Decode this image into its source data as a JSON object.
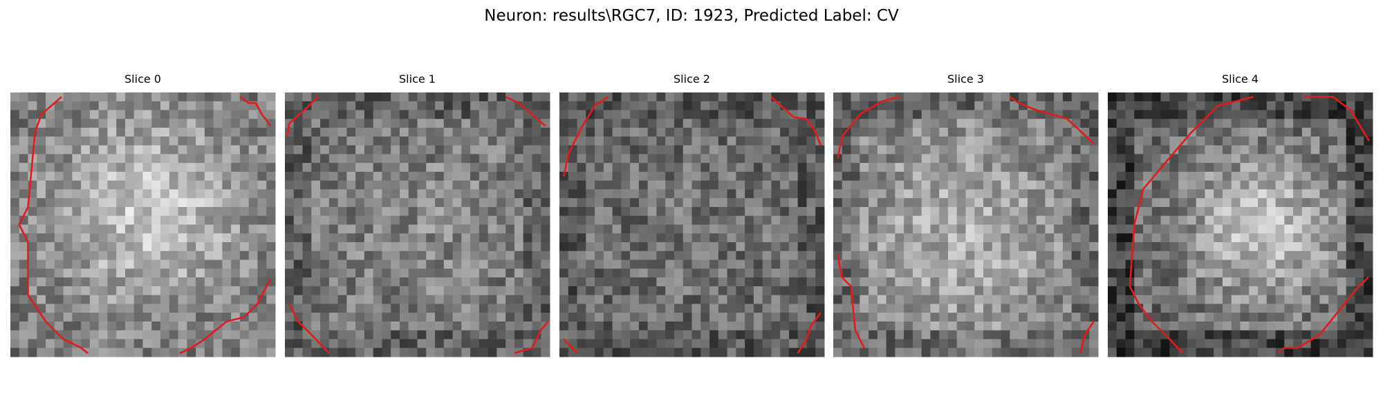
{
  "title": "Neuron: results\\RGC7, ID: 1923, Predicted Label: CV",
  "slices": [
    "Slice 0",
    "Slice 1",
    "Slice 2",
    "Slice 3",
    "Slice 4"
  ]
}
